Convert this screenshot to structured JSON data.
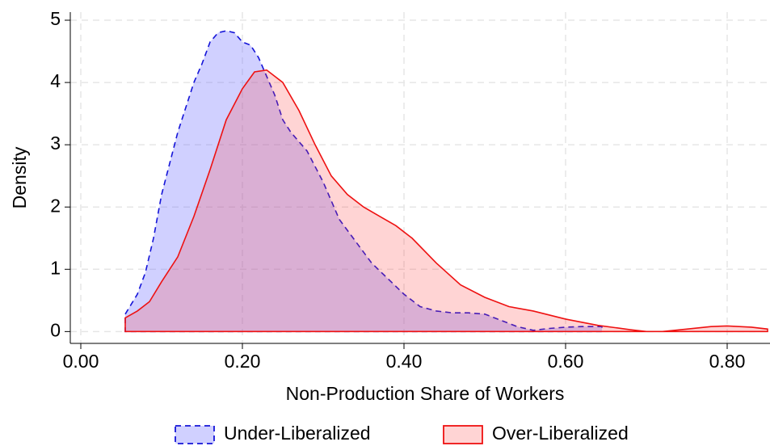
{
  "chart_data": {
    "type": "area",
    "x_label": "Non-Production Share of Workers",
    "y_label": "Density",
    "xlim": [
      -0.013,
      0.853
    ],
    "ylim": [
      -0.19,
      5.13
    ],
    "xticks": [
      {
        "value": 0,
        "label": "0.00"
      },
      {
        "value": 0.2,
        "label": "0.20"
      },
      {
        "value": 0.4,
        "label": "0.40"
      },
      {
        "value": 0.6,
        "label": "0.60"
      },
      {
        "value": 0.8,
        "label": "0.80"
      }
    ],
    "yticks": [
      0,
      1,
      2,
      3,
      4,
      5
    ],
    "grid": true,
    "legend": "bottom",
    "series": [
      {
        "name": "Under-Liberalized",
        "color": "#1414d8",
        "fill": "rgba(110,110,255,0.32)",
        "dash": true,
        "x": [
          0.055,
          0.07,
          0.08,
          0.09,
          0.1,
          0.11,
          0.12,
          0.13,
          0.14,
          0.15,
          0.16,
          0.17,
          0.18,
          0.19,
          0.2,
          0.21,
          0.22,
          0.23,
          0.24,
          0.25,
          0.26,
          0.28,
          0.3,
          0.32,
          0.34,
          0.36,
          0.38,
          0.4,
          0.42,
          0.44,
          0.46,
          0.48,
          0.5,
          0.52,
          0.54,
          0.56,
          0.58,
          0.6,
          0.62,
          0.645
        ],
        "values": [
          0.28,
          0.6,
          0.95,
          1.5,
          2.2,
          2.7,
          3.2,
          3.6,
          4.0,
          4.3,
          4.65,
          4.8,
          4.83,
          4.8,
          4.65,
          4.6,
          4.4,
          4.1,
          3.8,
          3.4,
          3.2,
          2.9,
          2.4,
          1.8,
          1.45,
          1.1,
          0.85,
          0.6,
          0.4,
          0.33,
          0.3,
          0.3,
          0.28,
          0.18,
          0.08,
          0.02,
          0.05,
          0.07,
          0.08,
          0.08
        ]
      },
      {
        "name": "Over-Liberalized",
        "color": "#ee1111",
        "fill": "rgba(255,60,60,0.22)",
        "dash": false,
        "x": [
          0.055,
          0.07,
          0.085,
          0.1,
          0.12,
          0.14,
          0.16,
          0.18,
          0.2,
          0.215,
          0.23,
          0.25,
          0.27,
          0.29,
          0.31,
          0.33,
          0.35,
          0.37,
          0.39,
          0.41,
          0.44,
          0.47,
          0.5,
          0.53,
          0.56,
          0.6,
          0.64,
          0.68,
          0.7,
          0.72,
          0.75,
          0.78,
          0.8,
          0.83,
          0.85
        ],
        "values": [
          0.22,
          0.33,
          0.48,
          0.8,
          1.2,
          1.85,
          2.6,
          3.4,
          3.9,
          4.17,
          4.2,
          4.0,
          3.55,
          3.0,
          2.5,
          2.2,
          2.0,
          1.85,
          1.7,
          1.5,
          1.1,
          0.75,
          0.55,
          0.4,
          0.33,
          0.2,
          0.1,
          0.03,
          0.0,
          0.0,
          0.04,
          0.08,
          0.09,
          0.07,
          0.04
        ]
      }
    ]
  }
}
